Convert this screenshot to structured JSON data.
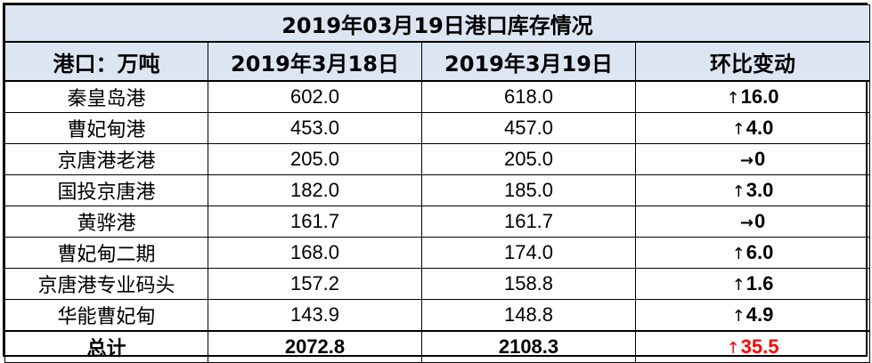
{
  "table": {
    "title": "2019年03月19日港口库存情况",
    "headers": [
      "港口：万吨",
      "2019年3月18日",
      "2019年3月19日",
      "环比变动"
    ],
    "rows": [
      {
        "port": "秦皇岛港",
        "prev": "602.0",
        "curr": "618.0",
        "arrow": "↑",
        "change": "16.0",
        "direction": "up"
      },
      {
        "port": "曹妃甸港",
        "prev": "453.0",
        "curr": "457.0",
        "arrow": "↑",
        "change": "4.0",
        "direction": "up"
      },
      {
        "port": "京唐港老港",
        "prev": "205.0",
        "curr": "205.0",
        "arrow": "→",
        "change": "0",
        "direction": "flat"
      },
      {
        "port": "国投京唐港",
        "prev": "182.0",
        "curr": "185.0",
        "arrow": "↑",
        "change": "3.0",
        "direction": "up"
      },
      {
        "port": "黄骅港",
        "prev": "161.7",
        "curr": "161.7",
        "arrow": "→",
        "change": "0",
        "direction": "flat"
      },
      {
        "port": "曹妃甸二期",
        "prev": "168.0",
        "curr": "174.0",
        "arrow": "↑",
        "change": "6.0",
        "direction": "up"
      },
      {
        "port": "京唐港专业码头",
        "prev": "157.2",
        "curr": "158.8",
        "arrow": "↑",
        "change": "1.6",
        "direction": "up"
      },
      {
        "port": "华能曹妃甸",
        "prev": "143.9",
        "curr": "148.8",
        "arrow": "↑",
        "change": "4.9",
        "direction": "up"
      }
    ],
    "total": {
      "port": "总计",
      "prev": "2072.8",
      "curr": "2108.3",
      "arrow": "↑",
      "change": "35.5",
      "direction": "up"
    }
  },
  "colors": {
    "header_bg": "#dce6f2",
    "up": "#ff0000",
    "flat": "#000000",
    "border": "#000000"
  },
  "chart_data": {
    "type": "table",
    "title": "2019年03月19日港口库存情况",
    "columns": [
      "港口：万吨",
      "2019年3月18日",
      "2019年3月19日",
      "环比变动"
    ],
    "categories": [
      "秦皇岛港",
      "曹妃甸港",
      "京唐港老港",
      "国投京唐港",
      "黄骅港",
      "曹妃甸二期",
      "京唐港专业码头",
      "华能曹妃甸",
      "总计"
    ],
    "series": [
      {
        "name": "2019年3月18日",
        "values": [
          602.0,
          453.0,
          205.0,
          182.0,
          161.7,
          168.0,
          157.2,
          143.9,
          2072.8
        ]
      },
      {
        "name": "2019年3月19日",
        "values": [
          618.0,
          457.0,
          205.0,
          185.0,
          161.7,
          174.0,
          158.8,
          148.8,
          2108.3
        ]
      },
      {
        "name": "环比变动",
        "values": [
          16.0,
          4.0,
          0,
          3.0,
          0,
          6.0,
          1.6,
          4.9,
          35.5
        ]
      }
    ]
  }
}
